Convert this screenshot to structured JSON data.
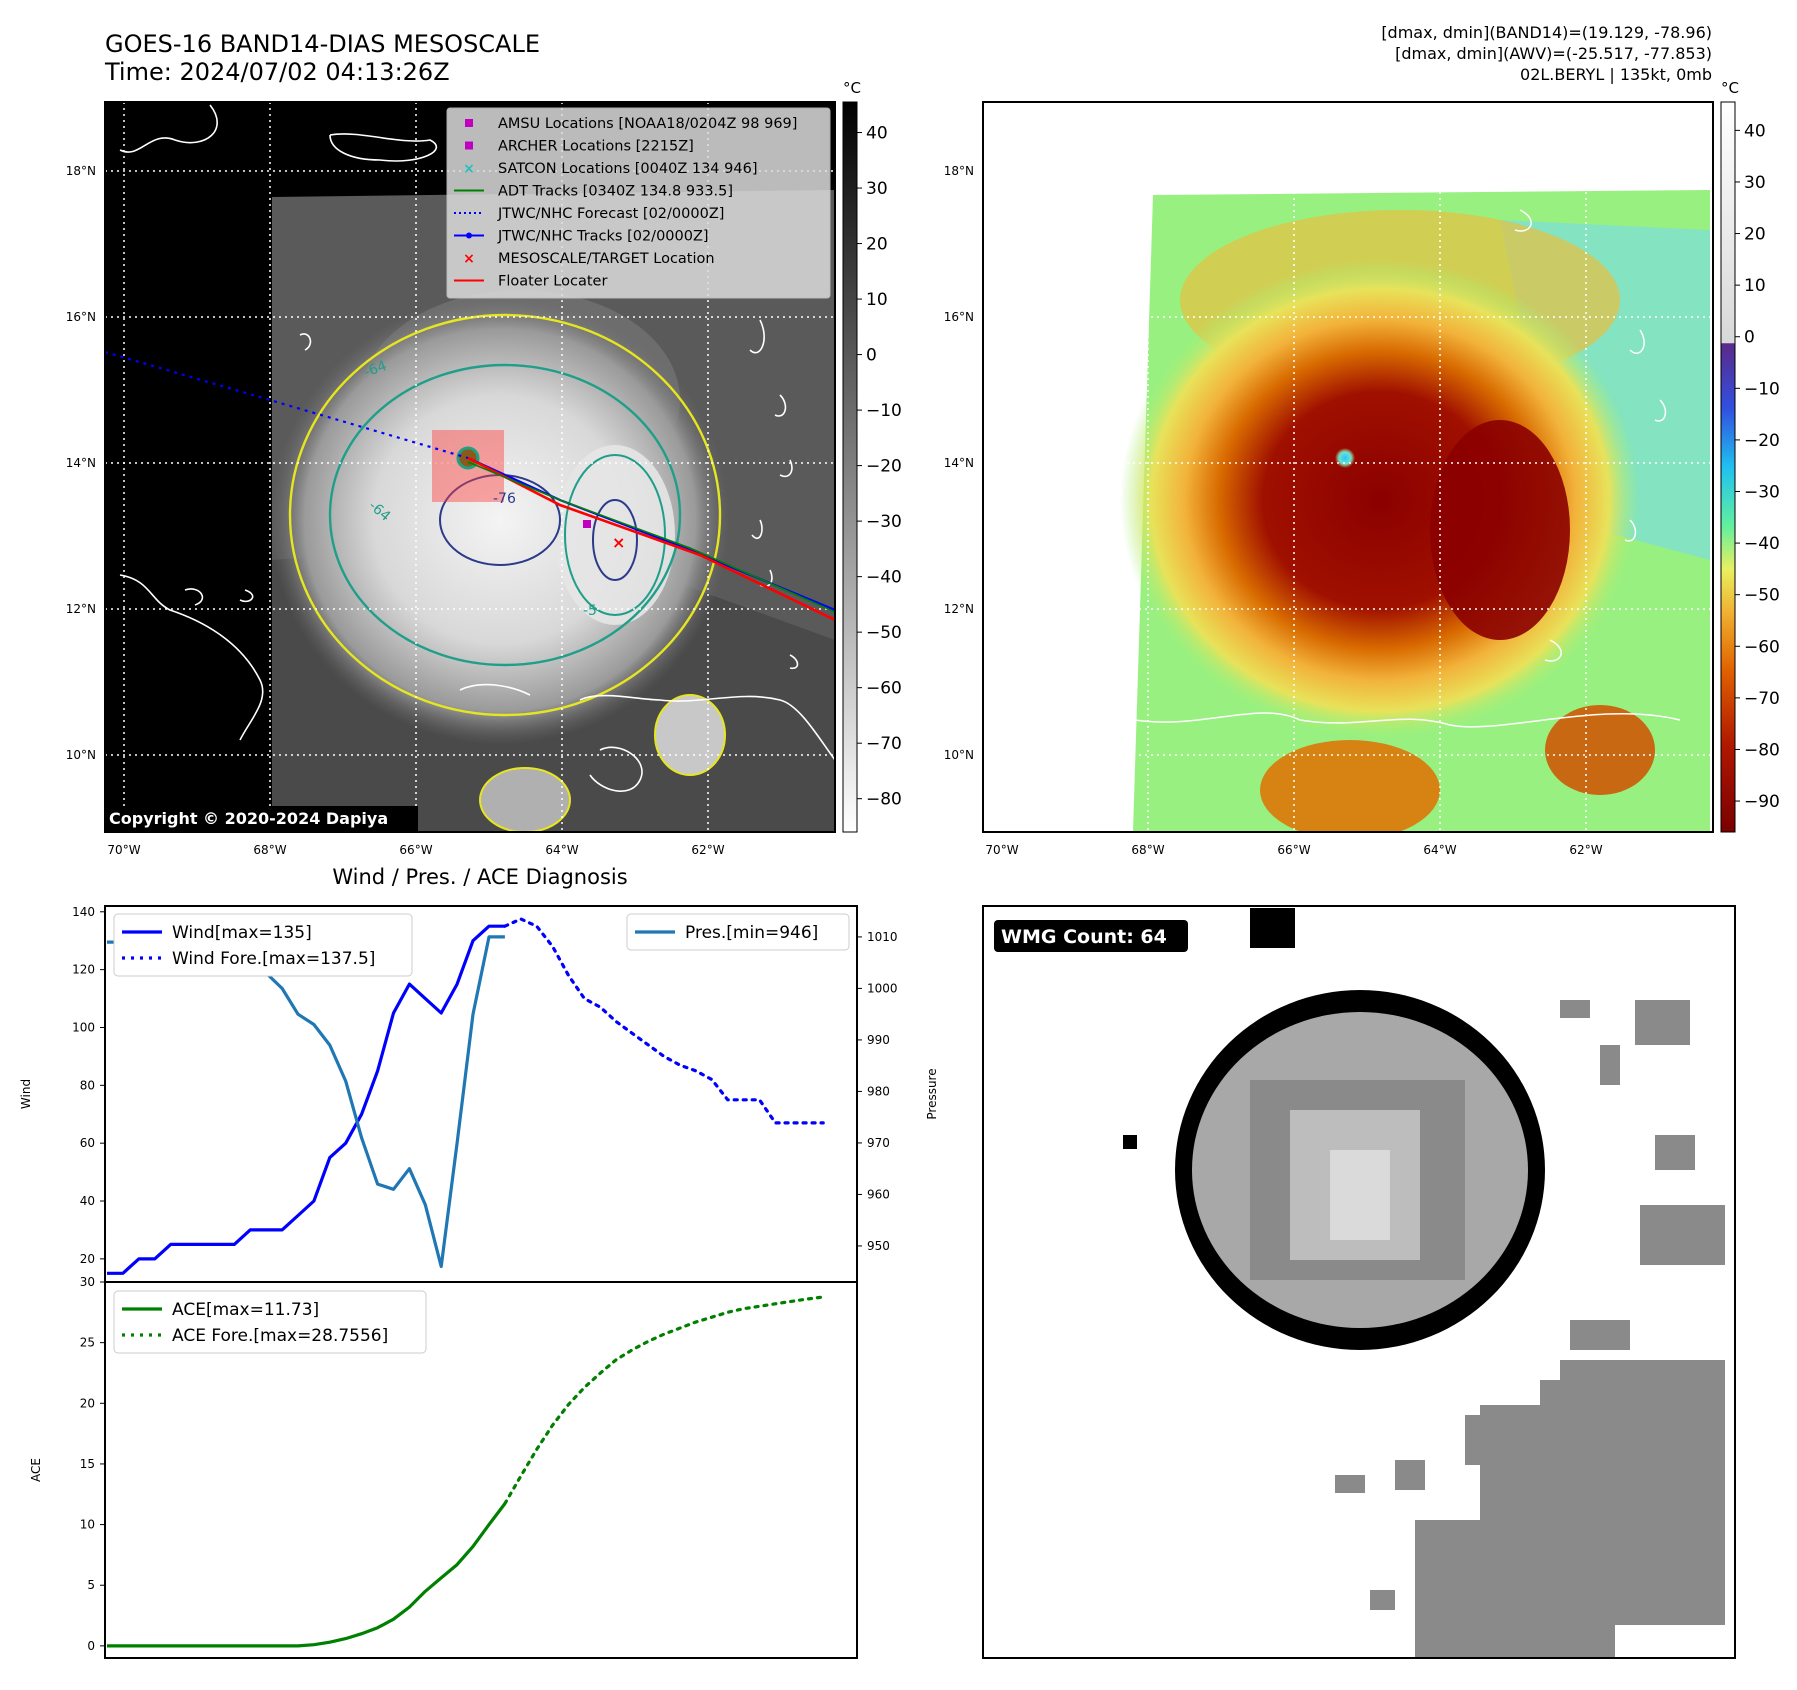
{
  "header": {
    "title_line1": "GOES-16 BAND14-DIAS MESOSCALE",
    "title_line2": "Time: 2024/07/02 04:13:26Z",
    "info_line1": "[dmax, dmin](BAND14)=(19.129, -78.96)",
    "info_line2": "[dmax, dmin](AWV)=(-25.517, -77.853)",
    "info_line3": "02L.BERYL | 135kt, 0mb"
  },
  "copyright": "Copyright © 2020-2024 Dapiya",
  "map": {
    "lat_ticks": [
      "18°N",
      "16°N",
      "14°N",
      "12°N",
      "10°N"
    ],
    "lon_ticks": [
      "70°W",
      "68°W",
      "66°W",
      "64°W",
      "62°W"
    ],
    "contour_labels": [
      "-64",
      "-76",
      "-64",
      "-5"
    ]
  },
  "colorbar_left": {
    "unit": "°C",
    "ticks": [
      "40",
      "30",
      "20",
      "10",
      "0",
      "−10",
      "−20",
      "−30",
      "−40",
      "−50",
      "−60",
      "−70",
      "−80"
    ]
  },
  "colorbar_right": {
    "unit": "°C",
    "ticks": [
      "40",
      "30",
      "20",
      "10",
      "0",
      "−10",
      "−20",
      "−30",
      "−40",
      "−50",
      "−60",
      "−70",
      "−80",
      "−90"
    ]
  },
  "legend_map": [
    {
      "label": "AMSU Locations [NOAA18/0204Z 98 969]",
      "marker": "square",
      "color": "#c000c0"
    },
    {
      "label": "ARCHER Locations [2215Z]",
      "marker": "square",
      "color": "#c000c0"
    },
    {
      "label": "SATCON Locations [0040Z 134 946]",
      "marker": "x",
      "color": "#20c0c0"
    },
    {
      "label": "ADT Tracks [0340Z 134.8 933.5]",
      "marker": "line",
      "color": "#008000"
    },
    {
      "label": "JTWC/NHC Forecast [02/0000Z]",
      "marker": "dotted",
      "color": "#0000ff"
    },
    {
      "label": "JTWC/NHC Tracks [02/0000Z]",
      "marker": "line-dot",
      "color": "#0000ff"
    },
    {
      "label": "MESOSCALE/TARGET Location",
      "marker": "x",
      "color": "#ff0000"
    },
    {
      "label": "Floater Locater",
      "marker": "line",
      "color": "#ff0000"
    }
  ],
  "wmg": {
    "label": "WMG Count: 64"
  },
  "chart_data": [
    {
      "type": "line",
      "title": "Wind / Pres. / ACE Diagnosis",
      "ylabel": "Wind",
      "y2label": "Pressure",
      "ylim": [
        12,
        142
      ],
      "y2lim": [
        943,
        1016
      ],
      "yticks": [
        20,
        40,
        60,
        80,
        100,
        120,
        140
      ],
      "y2ticks": [
        950,
        960,
        970,
        980,
        990,
        1000,
        1010
      ],
      "series": [
        {
          "name": "Wind[max=135]",
          "color": "#0000ff",
          "style": "solid",
          "x": [
            0,
            1,
            2,
            3,
            4,
            5,
            6,
            7,
            8,
            9,
            10,
            11,
            12,
            13,
            14,
            15,
            16,
            17,
            18,
            19,
            20,
            21,
            22,
            23,
            24,
            25
          ],
          "y": [
            15,
            15,
            20,
            20,
            25,
            25,
            25,
            25,
            25,
            30,
            30,
            30,
            35,
            40,
            55,
            60,
            70,
            85,
            105,
            115,
            110,
            105,
            115,
            130,
            135,
            135
          ]
        },
        {
          "name": "Wind Fore.[max=137.5]",
          "color": "#0000ff",
          "style": "dotted",
          "x": [
            25,
            26,
            27,
            28,
            29,
            30,
            31,
            32,
            33,
            34,
            35,
            36,
            37,
            38,
            39,
            40,
            41,
            42,
            43,
            44,
            45
          ],
          "y": [
            135,
            137.5,
            135,
            128,
            118,
            110,
            107,
            102,
            98,
            94,
            90,
            87,
            85,
            82,
            75,
            75,
            75,
            67,
            67,
            67,
            67
          ]
        },
        {
          "name": "Pres.[min=946]",
          "color": "#1f77b4",
          "style": "solid",
          "x": [
            0,
            1,
            2,
            3,
            4,
            5,
            6,
            7,
            8,
            9,
            10,
            11,
            12,
            13,
            14,
            15,
            16,
            17,
            18,
            19,
            20,
            21,
            22,
            23,
            24,
            25
          ],
          "y": [
            1009,
            1009,
            1009,
            1008,
            1007,
            1007,
            1006,
            1006,
            1005,
            1004,
            1003,
            1000,
            995,
            993,
            989,
            982,
            971,
            962,
            961,
            965,
            958,
            946,
            970,
            995,
            1010,
            1010
          ]
        }
      ]
    },
    {
      "type": "line",
      "ylabel": "ACE",
      "ylim": [
        -1,
        30
      ],
      "yticks": [
        0,
        5,
        10,
        15,
        20,
        25,
        30
      ],
      "series": [
        {
          "name": "ACE[max=11.73]",
          "color": "#008000",
          "style": "solid",
          "x": [
            0,
            2,
            4,
            6,
            8,
            10,
            12,
            13,
            14,
            15,
            16,
            17,
            18,
            19,
            20,
            21,
            22,
            23,
            24,
            25
          ],
          "y": [
            0,
            0,
            0,
            0,
            0,
            0,
            0,
            0.1,
            0.3,
            0.6,
            1.0,
            1.5,
            2.2,
            3.2,
            4.5,
            5.6,
            6.7,
            8.2,
            10.0,
            11.73
          ]
        },
        {
          "name": "ACE Fore.[max=28.7556]",
          "color": "#008000",
          "style": "dotted",
          "x": [
            25,
            26,
            27,
            28,
            29,
            30,
            31,
            32,
            33,
            34,
            35,
            36,
            37,
            38,
            39,
            40,
            41,
            42,
            43,
            44,
            45
          ],
          "y": [
            11.73,
            14.0,
            16.2,
            18.2,
            19.9,
            21.3,
            22.5,
            23.6,
            24.4,
            25.1,
            25.7,
            26.2,
            26.7,
            27.1,
            27.5,
            27.8,
            28.0,
            28.2,
            28.4,
            28.6,
            28.76
          ]
        }
      ]
    }
  ]
}
